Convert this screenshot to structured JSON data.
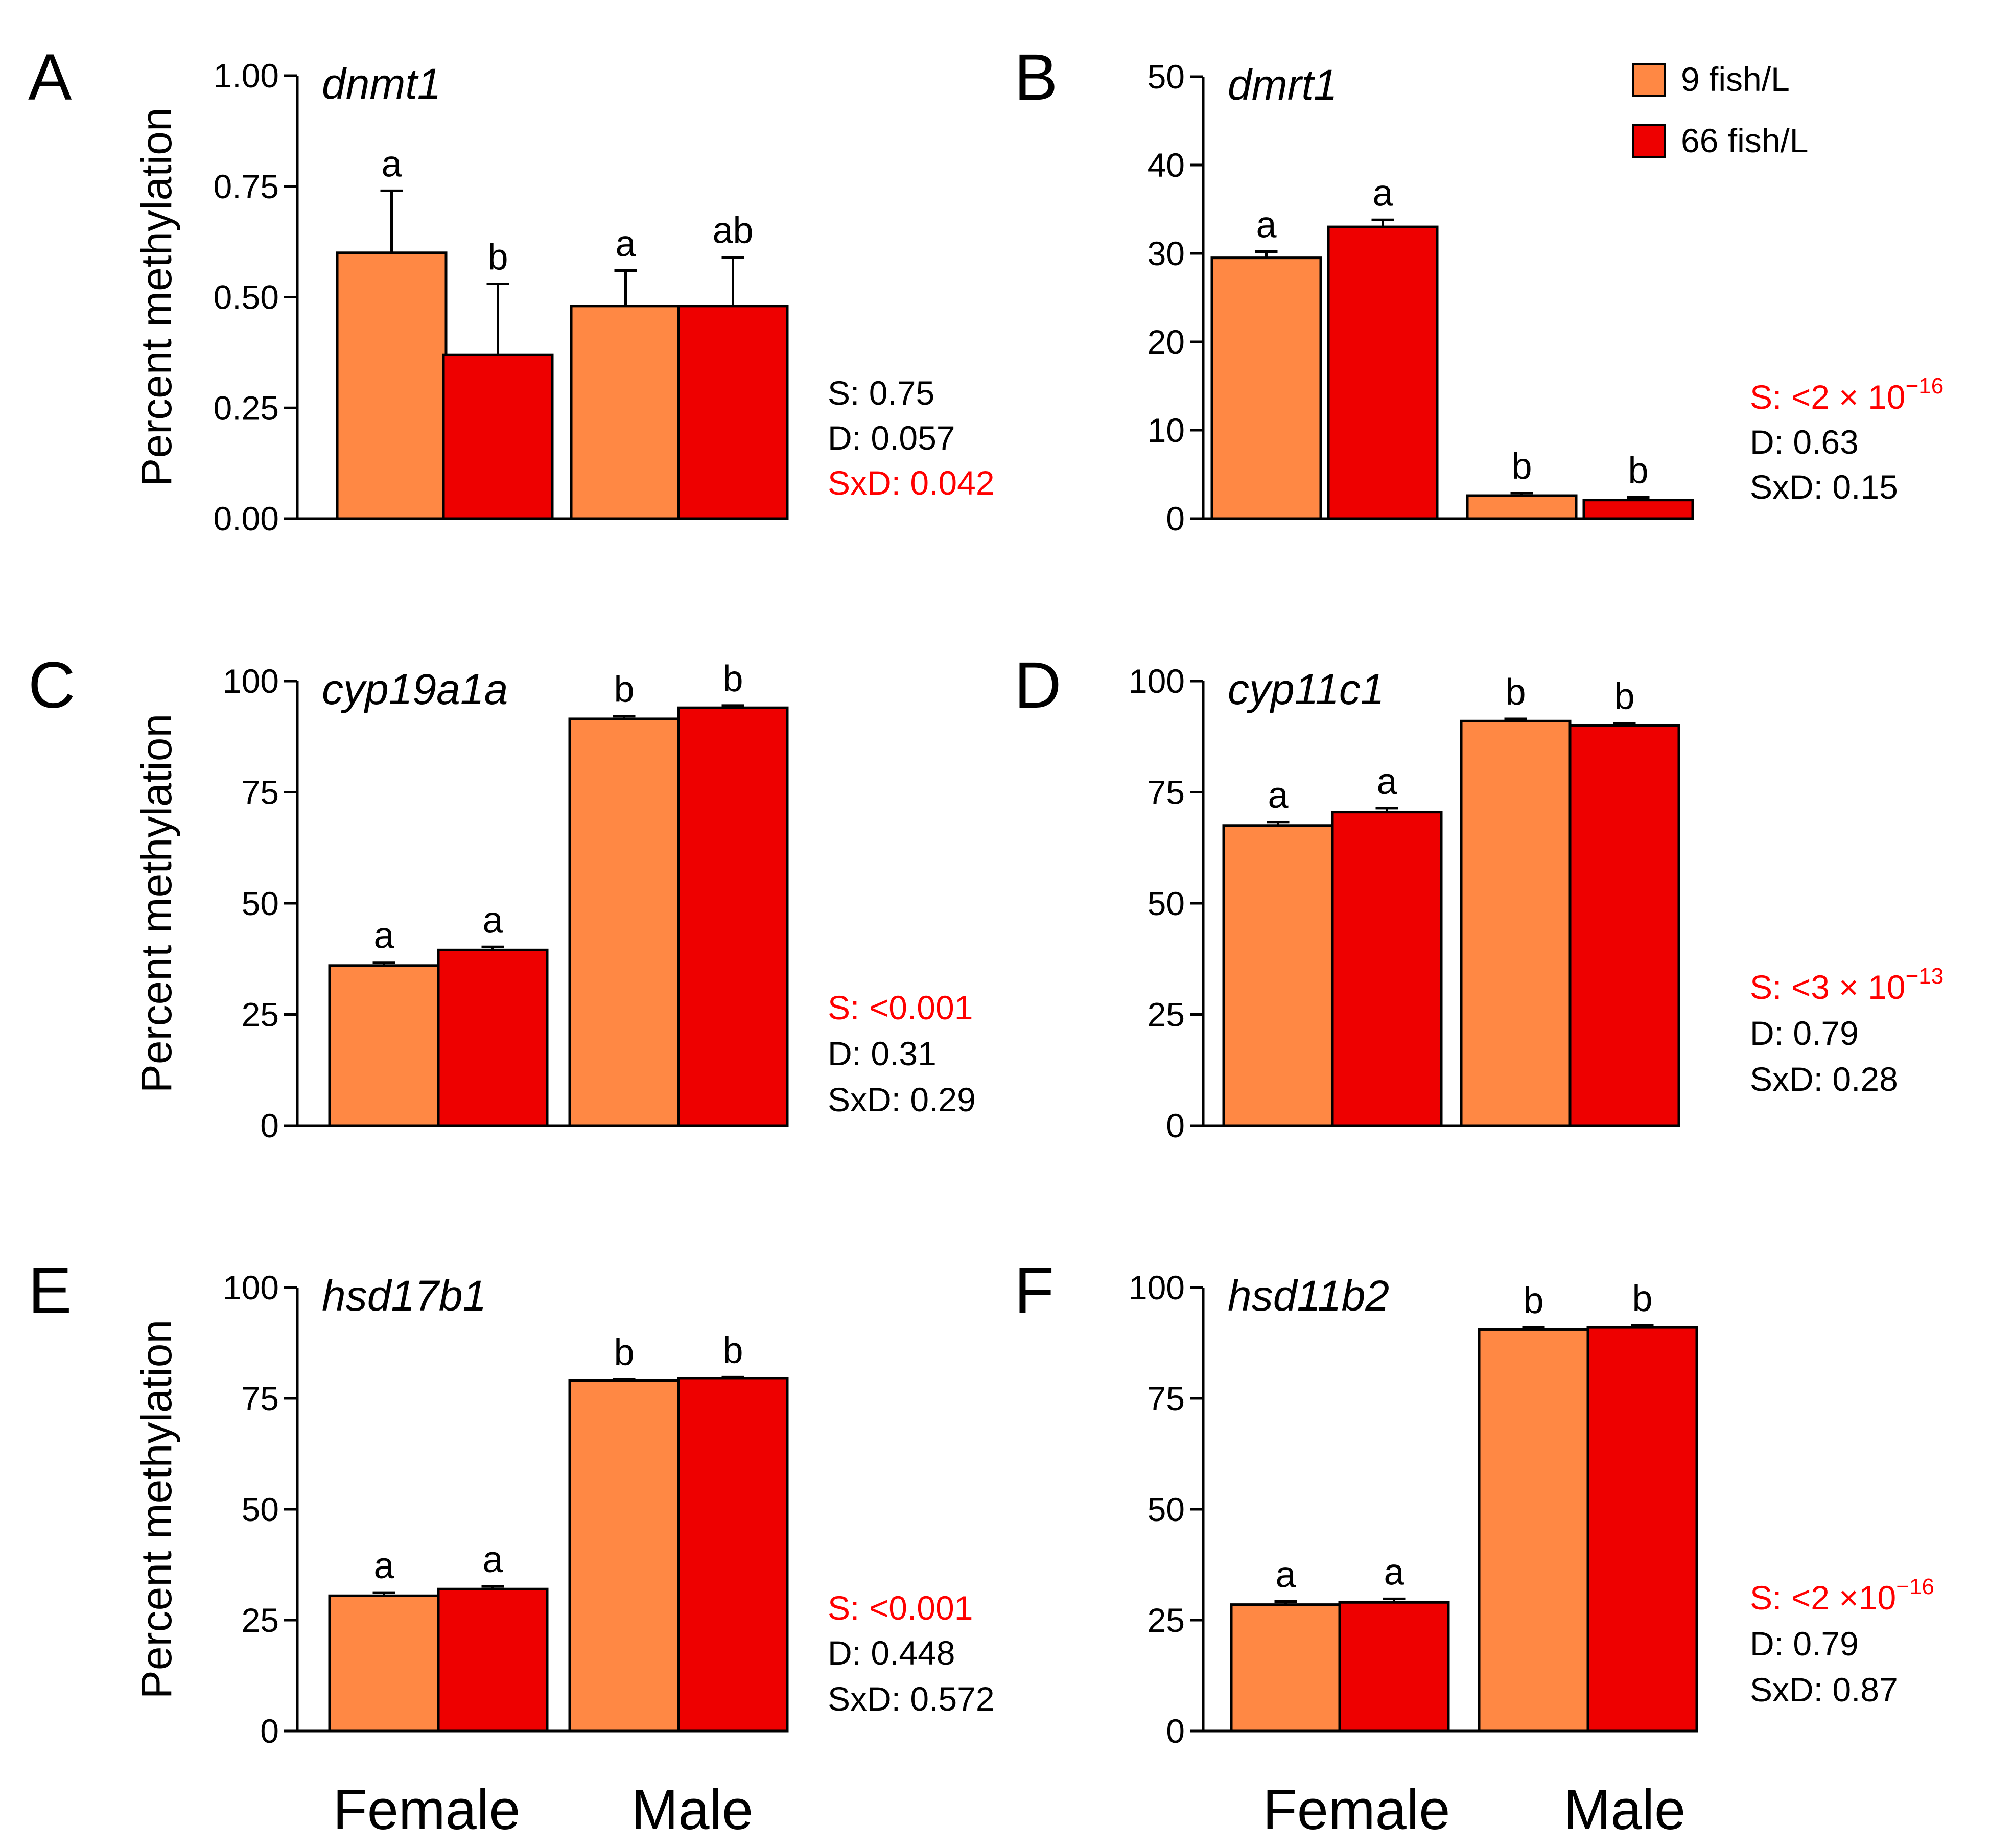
{
  "figure": {
    "legend": {
      "entries": [
        {
          "label": "9 fish/L",
          "color": "#ff8844"
        },
        {
          "label": "66 fish/L",
          "color": "#ee0000"
        }
      ]
    },
    "ylabel": "Percent methylation",
    "group_labels": [
      "Female",
      "Male"
    ],
    "stat_highlight_color": "#ff0000"
  },
  "chart_data": [
    {
      "type": "bar",
      "panel": "A",
      "title": "dnmt1",
      "ylabel": "Percent methylation",
      "categories": [
        "Female",
        "Male"
      ],
      "ylim": [
        0,
        1
      ],
      "yticks": [
        0,
        0.25,
        0.5,
        0.75,
        1
      ],
      "ytick_labels": [
        "0.00",
        "0.25",
        "0.50",
        "0.75",
        "1.00"
      ],
      "series": [
        {
          "name": "9 fish/L",
          "values": [
            0.6,
            0.48
          ],
          "errors": [
            0.14,
            0.08
          ]
        },
        {
          "name": "66 fish/L",
          "values": [
            0.37,
            0.48
          ],
          "errors": [
            0.16,
            0.11
          ]
        }
      ],
      "letters": [
        [
          "a",
          "a"
        ],
        [
          "b",
          "ab"
        ]
      ],
      "stats": [
        {
          "text": "S: 0.75",
          "significant": false
        },
        {
          "text": "D: 0.057",
          "significant": false
        },
        {
          "text": "SxD: 0.042",
          "significant": true
        }
      ]
    },
    {
      "type": "bar",
      "panel": "B",
      "title": "dmrt1",
      "ylabel": "",
      "categories": [
        "Female",
        "Male"
      ],
      "ylim": [
        0,
        50
      ],
      "yticks": [
        0,
        10,
        20,
        30,
        40,
        50
      ],
      "ytick_labels": [
        "0",
        "10",
        "20",
        "30",
        "40",
        "50"
      ],
      "series": [
        {
          "name": "9 fish/L",
          "values": [
            29.5,
            2.6
          ],
          "errors": [
            0.7,
            0.3
          ]
        },
        {
          "name": "66 fish/L",
          "values": [
            33.0,
            2.1
          ],
          "errors": [
            0.8,
            0.3
          ]
        }
      ],
      "letters": [
        [
          "a",
          "b"
        ],
        [
          "a",
          "b"
        ]
      ],
      "stats": [
        {
          "text": "S: <2 × 10",
          "sup": "−16",
          "significant": true
        },
        {
          "text": "D: 0.63",
          "significant": false
        },
        {
          "text": "SxD: 0.15",
          "significant": false
        }
      ]
    },
    {
      "type": "bar",
      "panel": "C",
      "title": "cyp19a1a",
      "ylabel": "Percent methylation",
      "categories": [
        "Female",
        "Male"
      ],
      "ylim": [
        0,
        100
      ],
      "yticks": [
        0,
        25,
        50,
        75,
        100
      ],
      "ytick_labels": [
        "0",
        "25",
        "50",
        "75",
        "100"
      ],
      "series": [
        {
          "name": "9 fish/L",
          "values": [
            36,
            91.5
          ],
          "errors": [
            0.7,
            0.6
          ]
        },
        {
          "name": "66 fish/L",
          "values": [
            39.5,
            94
          ],
          "errors": [
            0.7,
            0.5
          ]
        }
      ],
      "letters": [
        [
          "a",
          "b"
        ],
        [
          "a",
          "b"
        ]
      ],
      "stats": [
        {
          "text": "S: <0.001",
          "significant": true
        },
        {
          "text": "D: 0.31",
          "significant": false
        },
        {
          "text": "SxD: 0.29",
          "significant": false
        }
      ]
    },
    {
      "type": "bar",
      "panel": "D",
      "title": "cyp11c1",
      "ylabel": "",
      "categories": [
        "Female",
        "Male"
      ],
      "ylim": [
        0,
        100
      ],
      "yticks": [
        0,
        25,
        50,
        75,
        100
      ],
      "ytick_labels": [
        "0",
        "25",
        "50",
        "75",
        "100"
      ],
      "series": [
        {
          "name": "9 fish/L",
          "values": [
            67.5,
            91
          ],
          "errors": [
            0.8,
            0.5
          ]
        },
        {
          "name": "66 fish/L",
          "values": [
            70.5,
            90
          ],
          "errors": [
            0.9,
            0.5
          ]
        }
      ],
      "letters": [
        [
          "a",
          "b"
        ],
        [
          "a",
          "b"
        ]
      ],
      "stats": [
        {
          "text": "S: <3 × 10",
          "sup": "−13",
          "significant": true
        },
        {
          "text": "D: 0.79",
          "significant": false
        },
        {
          "text": "SxD: 0.28",
          "significant": false
        }
      ]
    },
    {
      "type": "bar",
      "panel": "E",
      "title": "hsd17b1",
      "ylabel": "Percent methylation",
      "categories": [
        "Female",
        "Male"
      ],
      "ylim": [
        0,
        100
      ],
      "yticks": [
        0,
        25,
        50,
        75,
        100
      ],
      "ytick_labels": [
        "0",
        "25",
        "50",
        "75",
        "100"
      ],
      "series": [
        {
          "name": "9 fish/L",
          "values": [
            30.5,
            79
          ],
          "errors": [
            0.7,
            0.3
          ]
        },
        {
          "name": "66 fish/L",
          "values": [
            32,
            79.5
          ],
          "errors": [
            0.6,
            0.3
          ]
        }
      ],
      "letters": [
        [
          "a",
          "b"
        ],
        [
          "a",
          "b"
        ]
      ],
      "stats": [
        {
          "text": "S: <0.001",
          "significant": true
        },
        {
          "text": "D: 0.448",
          "significant": false
        },
        {
          "text": "SxD: 0.572",
          "significant": false
        }
      ]
    },
    {
      "type": "bar",
      "panel": "F",
      "title": "hsd11b2",
      "ylabel": "",
      "categories": [
        "Female",
        "Male"
      ],
      "ylim": [
        0,
        100
      ],
      "yticks": [
        0,
        25,
        50,
        75,
        100
      ],
      "ytick_labels": [
        "0",
        "25",
        "50",
        "75",
        "100"
      ],
      "series": [
        {
          "name": "9 fish/L",
          "values": [
            28.5,
            90.5
          ],
          "errors": [
            0.7,
            0.5
          ]
        },
        {
          "name": "66 fish/L",
          "values": [
            29,
            91
          ],
          "errors": [
            0.8,
            0.5
          ]
        }
      ],
      "letters": [
        [
          "a",
          "b"
        ],
        [
          "a",
          "b"
        ]
      ],
      "stats": [
        {
          "text": "S: <2 ×10",
          "sup": "−16",
          "significant": true
        },
        {
          "text": "D: 0.79",
          "significant": false
        },
        {
          "text": "SxD: 0.87",
          "significant": false
        }
      ]
    }
  ]
}
